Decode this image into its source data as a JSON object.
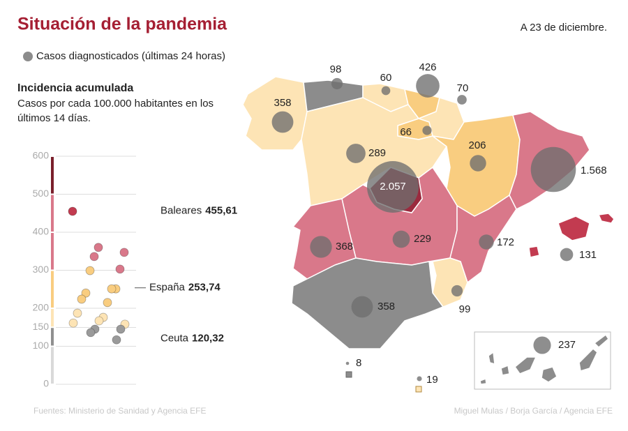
{
  "header": {
    "title": "Situación de la pandemia",
    "date": "A 23 de diciembre."
  },
  "legend": {
    "label": "Casos diagnosticados (últimas 24 horas)",
    "color": "#8c8c8c"
  },
  "chart_data": {
    "type": "strip",
    "title": "Incidencia acumulada",
    "subtitle_lines": [
      "Casos por cada 100.000 habitantes en los",
      "últimos 14 días."
    ],
    "ylim": [
      0,
      600
    ],
    "yticks": [
      0,
      100,
      150,
      200,
      300,
      400,
      500,
      600
    ],
    "grid": true,
    "band_colors": [
      "#d9d9d9",
      "#8f8f8f",
      "#fde4b5",
      "#f9cd80",
      "#d9788a",
      "#d9788a",
      "#7a1f2b"
    ],
    "dot_colors": [
      "#c4c4c4",
      "#9a9a9a",
      "#fde4b5",
      "#f9cd80",
      "#d9788a",
      "#c23b50",
      "#7a1f2b"
    ],
    "values": [
      455,
      360,
      347,
      336,
      303,
      299,
      251,
      240,
      251,
      224,
      215,
      187,
      176,
      161,
      167,
      158,
      145,
      145,
      136,
      117
    ],
    "annotations": [
      {
        "label": "Baleares",
        "value": 455.61,
        "value_label": "455,61"
      },
      {
        "label": "España",
        "value": 253.74,
        "value_label": "253,74"
      },
      {
        "label": "Ceuta",
        "value": 120.32,
        "value_label": "120,32"
      }
    ]
  },
  "map": {
    "bubble_color": "#6e6e6e",
    "values": [
      358,
      98,
      60,
      426,
      70,
      66,
      289,
      206,
      1568,
      2057,
      368,
      229,
      172,
      131,
      99,
      358,
      8,
      19,
      237
    ],
    "value_labels": [
      "358",
      "98",
      "60",
      "426",
      "70",
      "66",
      "289",
      "206",
      "1.568",
      "2.057",
      "368",
      "229",
      "172",
      "131",
      "99",
      "358",
      "8",
      "19",
      "237"
    ]
  },
  "footer": {
    "source": "Fuentes: Ministerio de Sanidad y Agencia EFE",
    "credit": "Miguel Mulas / Borja García / Agencia EFE"
  }
}
